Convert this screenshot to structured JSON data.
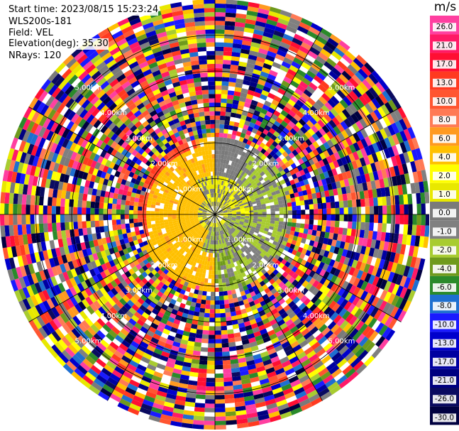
{
  "header": {
    "start_time": "Start time: 2023/08/15 15:23:24",
    "instrument": "WLS200s-181",
    "field": "Field: VEL",
    "elevation": "Elevation(deg): 35.30",
    "nrays": "NRays: 120"
  },
  "chart_data": {
    "type": "heatmap",
    "projection": "polar-ppi",
    "field": "VEL",
    "nrays": 120,
    "range_rings_km": [
      1.0,
      2.0,
      3.0,
      4.0,
      5.0
    ],
    "range_ring_labels": [
      "1.00km",
      "2.00km",
      "3.00km",
      "4.00km",
      "5.00km"
    ],
    "max_range_km": 6.0,
    "spokes_deg": [
      0,
      30,
      60,
      90,
      120,
      150,
      180,
      210,
      240,
      270,
      300,
      330
    ],
    "grid": true,
    "colorbar": {
      "unit": "m/s",
      "tick_labels": [
        "26.0",
        "21.0",
        "17.0",
        "13.0",
        "10.0",
        "8.0",
        "6.0",
        "4.0",
        "2.0",
        "1.0",
        "0.0",
        "-1.0",
        "-2.0",
        "-4.0",
        "-6.0",
        "-8.0",
        "-10.0",
        "-13.0",
        "-17.0",
        "-21.0",
        "-26.0",
        "-30.0"
      ],
      "colors": [
        "#ff3fa0",
        "#ff1a66",
        "#ff0f33",
        "#ff3a20",
        "#ff5530",
        "#ff7a55",
        "#ff9a20",
        "#ffc000",
        "#ffff00",
        "#e8e800",
        "#7a7a7a",
        "#808080",
        "#a8cc30",
        "#6f9a1c",
        "#2a8a2a",
        "#1e6fd0",
        "#1a1aff",
        "#0000cc",
        "#0000a0",
        "#000080",
        "#0a0a60",
        "#000040"
      ]
    },
    "description_regions": [
      {
        "range_km": [
          0,
          1.0
        ],
        "dominant_values_ms": [
          -1.0,
          0.0,
          2.0
        ]
      },
      {
        "range_km": [
          1.0,
          2.0
        ],
        "dominant_values_ms": [
          2.0,
          4.0,
          -2.0,
          -4.0,
          10.0
        ]
      },
      {
        "range_km": [
          2.0,
          6.0
        ],
        "dominant_values_ms": "noise (all classes)"
      }
    ]
  }
}
